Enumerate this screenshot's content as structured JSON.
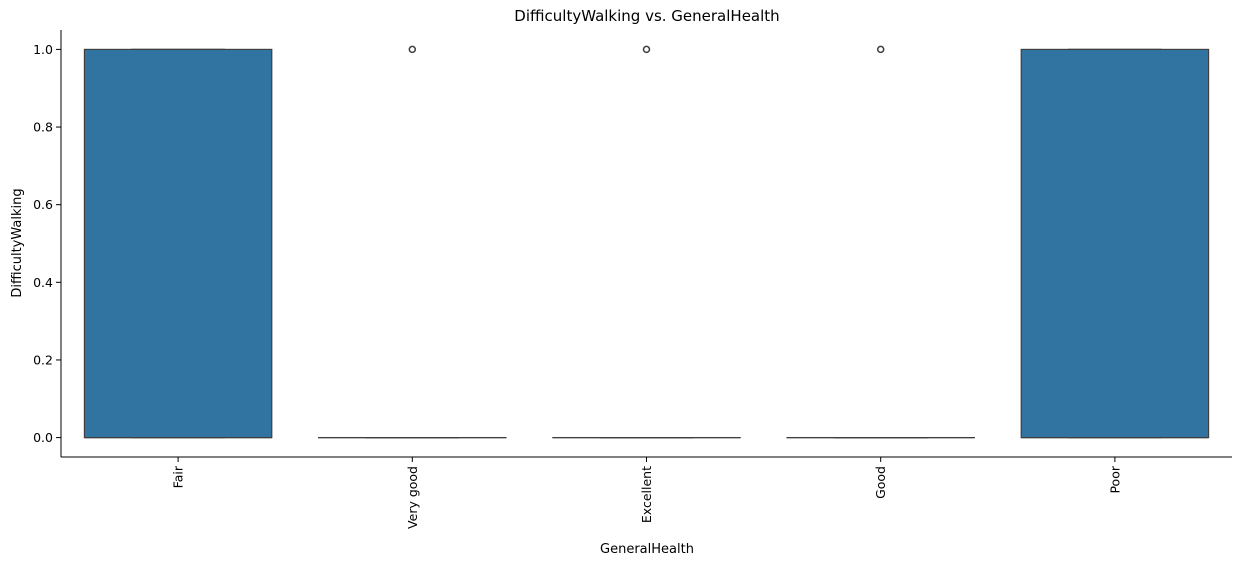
{
  "chart_data": {
    "type": "box",
    "title": "DifficultyWalking vs. GeneralHealth",
    "xlabel": "GeneralHealth",
    "ylabel": "DifficultyWalking",
    "categories": [
      "Fair",
      "Very good",
      "Excellent",
      "Good",
      "Poor"
    ],
    "ylim": [
      -0.05,
      1.05
    ],
    "yticks": [
      0.0,
      0.2,
      0.4,
      0.6,
      0.8,
      1.0
    ],
    "ytick_labels": [
      "0.0",
      "0.2",
      "0.4",
      "0.6",
      "0.8",
      "1.0"
    ],
    "boxes": [
      {
        "category": "Fair",
        "q1": 0,
        "median": 0,
        "q3": 1,
        "whisker_low": 0,
        "whisker_high": 1,
        "outliers": []
      },
      {
        "category": "Very good",
        "q1": 0,
        "median": 0,
        "q3": 0,
        "whisker_low": 0,
        "whisker_high": 0,
        "outliers": [
          1
        ]
      },
      {
        "category": "Excellent",
        "q1": 0,
        "median": 0,
        "q3": 0,
        "whisker_low": 0,
        "whisker_high": 0,
        "outliers": [
          1
        ]
      },
      {
        "category": "Good",
        "q1": 0,
        "median": 0,
        "q3": 0,
        "whisker_low": 0,
        "whisker_high": 0,
        "outliers": [
          1
        ]
      },
      {
        "category": "Poor",
        "q1": 0,
        "median": 0,
        "q3": 1,
        "whisker_low": 0,
        "whisker_high": 1,
        "outliers": []
      }
    ],
    "box_color": "#3274a1",
    "edge_color": "#3f3f3f",
    "grid": false,
    "legend": "none"
  }
}
